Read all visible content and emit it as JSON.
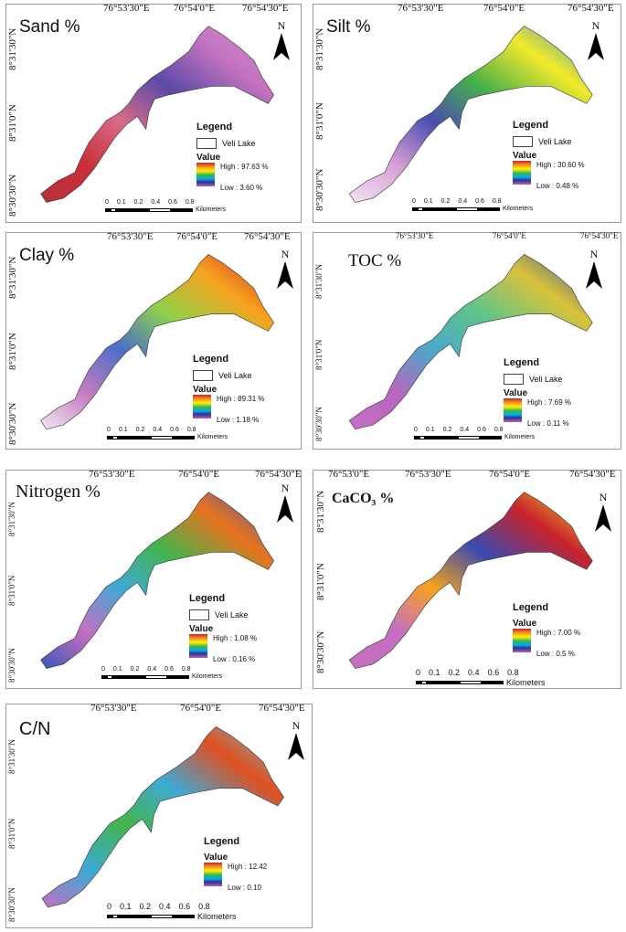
{
  "panels": [
    {
      "title": "Sand %",
      "lon_ticks": [
        "76°53'30\"E",
        "76°54'0\"E",
        "76°54'30\"E"
      ],
      "lat_ticks": [
        "8°31'30\"N",
        "8°31'0\"N",
        "8°30'30\"N"
      ],
      "north": "N",
      "legend": {
        "heading": "Legend",
        "lake_label": "Veli  Lake",
        "value_label": "Value",
        "high": "High : 97.63 %",
        "low": "Low :  3.60 %"
      },
      "scale": {
        "ticks": [
          "0",
          "0.1",
          "0.2",
          "0.4",
          "0.6",
          "0.8"
        ],
        "unit": "Kilometers"
      },
      "gradient": [
        "#b9313a",
        "#c8303a",
        "#d96a87",
        "#5b4aa8",
        "#c472c0",
        "#d78fd1"
      ]
    },
    {
      "title": "Silt %",
      "lon_ticks": [
        "76°53'30\"E",
        "76°54'0\"E",
        "76°54'30\"E"
      ],
      "lat_ticks": [
        "8°31'30\"N",
        "8°31'0\"N",
        "8°30'30\"N"
      ],
      "north": "N",
      "legend": {
        "heading": "Legend",
        "lake_label": "Veli  Lake",
        "value_label": "Value",
        "high": "High : 30.60 %",
        "low": "Low :  0.48 %"
      },
      "scale": {
        "ticks": [
          "0",
          "0.1",
          "0.2",
          "0.4",
          "0.6",
          "0.8"
        ],
        "unit": "Kilometers"
      },
      "gradient": [
        "#f2e4f2",
        "#d9a0d6",
        "#4b4db0",
        "#46b04a",
        "#f2ea2a",
        "#3b8fd6"
      ]
    },
    {
      "title": "Clay %",
      "lon_ticks": [
        "76°53'30\"E",
        "76°54'0\"E",
        "76°54'30\"E"
      ],
      "lat_ticks": [
        "8°31'30\"N",
        "8°31'0\"N",
        "8°30'30\"N"
      ],
      "north": "N",
      "legend": {
        "heading": "Legend",
        "lake_label": "Veli  Lake",
        "value_label": "Value",
        "high": "High : 89.31 %",
        "low": "Low :  1.18 %"
      },
      "scale": {
        "ticks": [
          "0",
          "0.1",
          "0.2",
          "0.4",
          "0.6",
          "0.8"
        ],
        "unit": "Kilometers"
      },
      "gradient": [
        "#f2e6f2",
        "#c47cc0",
        "#4a6fc8",
        "#8fd14a",
        "#f7a21d",
        "#c8232b"
      ]
    },
    {
      "title": "TOC %",
      "lon_ticks": [
        "76°53'30\"E",
        "76°54'0\"E",
        "76°54'30\"E"
      ],
      "lat_ticks": [
        "8°31'30\"N",
        "8°31'0\"N",
        "8°30'30\"N"
      ],
      "north": "N",
      "legend": {
        "heading": "Legend",
        "lake_label": "Veli  Lake",
        "value_label": "Value",
        "high": "High : 7.69 %",
        "low": "Low :  0.11 %"
      },
      "scale": {
        "ticks": [
          "0",
          "0.1",
          "0.2",
          "0.4",
          "0.6",
          "0.8"
        ],
        "unit": "Kilometers"
      },
      "gradient": [
        "#c46fc2",
        "#b866c0",
        "#4aa9c8",
        "#5fc48a",
        "#d9c23a",
        "#2c4fa8"
      ]
    },
    {
      "title": "Nitrogen %",
      "lon_ticks": [
        "76°53'30\"E",
        "76°54'0\"E",
        "76°54'30\"E"
      ],
      "lat_ticks": [
        "8°31'30\"N",
        "8°31'0\"N",
        "8°30'30\"N"
      ],
      "north": "N",
      "legend": {
        "heading": "Legend",
        "lake_label": "Veli  Lake",
        "value_label": "Value",
        "high": "High : 1.08 %",
        "low": "Low : 0.16 %"
      },
      "scale": {
        "ticks": [
          "0",
          "0.1",
          "0.2",
          "0.4",
          "0.6",
          "0.8"
        ],
        "unit": "Kilometers"
      },
      "gradient": [
        "#3b58b4",
        "#c46fc2",
        "#3ea9d6",
        "#44b44a",
        "#e8731f",
        "#3b58b4"
      ]
    },
    {
      "title": "CaCO₃ %",
      "lon_ticks": [
        "76°53'0\"E",
        "76°53'30\"E",
        "76°54'0\"E",
        "76°54'30\"E"
      ],
      "lat_ticks": [
        "8°31'30\"N",
        "8°31'0\"N",
        "8°30'30\"N"
      ],
      "north": "N",
      "legend": {
        "heading": "Legend",
        "lake_label": "",
        "value_label": "Value",
        "high": "High : 7.00 %",
        "low": "Low : 0.5 %"
      },
      "scale": {
        "ticks": [
          "0",
          "0.1",
          "0.2",
          "0.4",
          "0.6",
          "0.8"
        ],
        "unit": "Kilometers"
      },
      "gradient": [
        "#c46fc2",
        "#c46fc2",
        "#f7a21d",
        "#3a4ab0",
        "#c8232b",
        "#f2ea2a"
      ]
    },
    {
      "title": "C/N",
      "lon_ticks": [
        "76°53'30\"E",
        "76°54'0\"E",
        "76°54'30\"E"
      ],
      "lat_ticks": [
        "8°31'30\"N",
        "8°31'0\"N",
        "8°30'30\"N"
      ],
      "north": "N",
      "legend": {
        "heading": "Legend",
        "lake_label": "",
        "value_label": "Value",
        "high": "High : 12.42",
        "low": "Low : 0.10"
      },
      "scale": {
        "ticks": [
          "0",
          "0.1",
          "0.2",
          "0.4",
          "0.6",
          "0.8"
        ],
        "unit": "Kilometers"
      },
      "gradient": [
        "#c46fc2",
        "#3ea9d6",
        "#44b44a",
        "#3ea9d6",
        "#e0501f",
        "#6cc4d6"
      ]
    }
  ]
}
